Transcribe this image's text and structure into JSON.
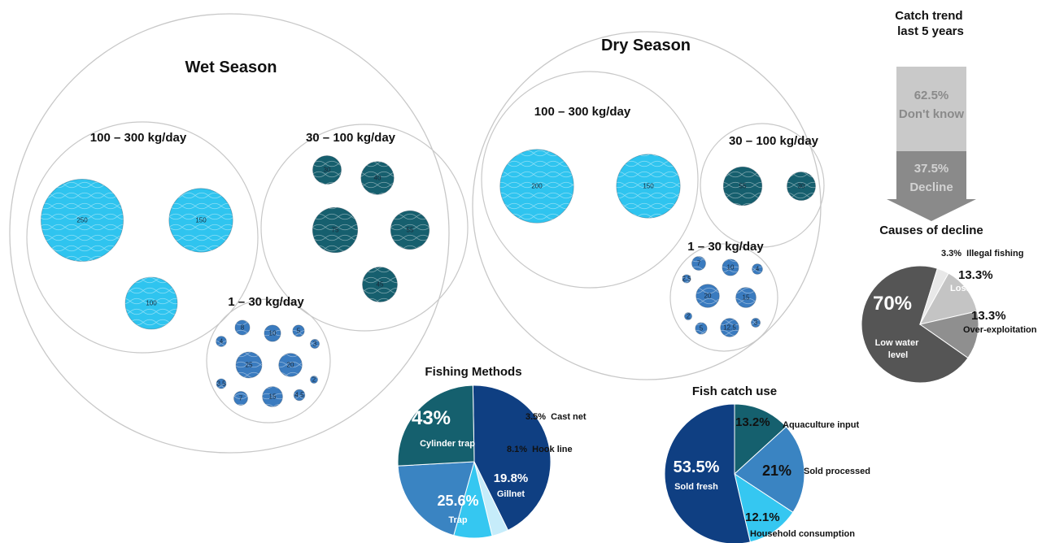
{
  "colors": {
    "high": "#2fc4ef",
    "mid": "#165f6e",
    "low": "#3a7bbf",
    "ring": "#c8c8c8",
    "arrow_top": "#c9c9c9",
    "arrow_bottom": "#8a8a8a"
  },
  "chart_data": [
    {
      "type": "bubble",
      "title": "Wet Season",
      "groups": [
        {
          "label": "100 – 300 kg/day",
          "values": [
            250,
            150,
            100
          ]
        },
        {
          "label": "30 – 100 kg/day",
          "values": [
            30,
            40,
            75,
            55,
            45
          ]
        },
        {
          "label": "1 – 30 kg/day",
          "values": [
            4,
            8,
            10,
            5,
            3,
            25,
            20,
            3.5,
            7,
            15,
            4.5,
            2
          ]
        }
      ]
    },
    {
      "type": "bubble",
      "title": "Dry Season",
      "groups": [
        {
          "label": "100 – 300 kg/day",
          "values": [
            200,
            150
          ]
        },
        {
          "label": "30 – 100 kg/day",
          "values": [
            55,
            30
          ]
        },
        {
          "label": "1 – 30 kg/day",
          "values": [
            7,
            10,
            4,
            2.5,
            20,
            15,
            2,
            5,
            12.5,
            3
          ]
        }
      ]
    },
    {
      "type": "bar",
      "title": "Catch trend\nlast 5 years",
      "segments": [
        {
          "value": "62.5%",
          "label": "Don't know"
        },
        {
          "value": "37.5%",
          "label": "Decline"
        }
      ]
    },
    {
      "type": "pie",
      "title": "Causes of decline",
      "slices": [
        {
          "label": "Low water level",
          "value": 70,
          "text": "70%",
          "color": "#555555"
        },
        {
          "label": "Illegal fishing",
          "value": 3.3,
          "text": "3.3%",
          "color": "#e8e8e8"
        },
        {
          "label": "Loss of forest",
          "value": 13.3,
          "text": "13.3%",
          "color": "#c4c4c4"
        },
        {
          "label": "Over-exploitation",
          "value": 13.3,
          "text": "13.3%",
          "color": "#8f8f8f"
        }
      ]
    },
    {
      "type": "pie",
      "title": "Fishing Methods",
      "slices": [
        {
          "label": "Cylinder trap",
          "value": 43,
          "text": "43%",
          "color": "#0f3f82"
        },
        {
          "label": "Cast net",
          "value": 3.5,
          "text": "3.5%",
          "color": "#c6ecfa"
        },
        {
          "label": "Hook line",
          "value": 8.1,
          "text": "8.1%",
          "color": "#35c7f1"
        },
        {
          "label": "Gillnet",
          "value": 19.8,
          "text": "19.8%",
          "color": "#3a84c2"
        },
        {
          "label": "Trap",
          "value": 25.6,
          "text": "25.6%",
          "color": "#15606e"
        }
      ]
    },
    {
      "type": "pie",
      "title": "Fish catch use",
      "slices": [
        {
          "label": "Aquaculture input",
          "value": 13.2,
          "text": "13.2%",
          "color": "#15606e"
        },
        {
          "label": "Sold processed",
          "value": 21,
          "text": "21%",
          "color": "#3a84c2"
        },
        {
          "label": "Household consumption",
          "value": 12.1,
          "text": "12.1%",
          "color": "#35c7f1"
        },
        {
          "label": "Sold fresh",
          "value": 53.5,
          "text": "53.5%",
          "color": "#0f3f82"
        }
      ]
    }
  ]
}
